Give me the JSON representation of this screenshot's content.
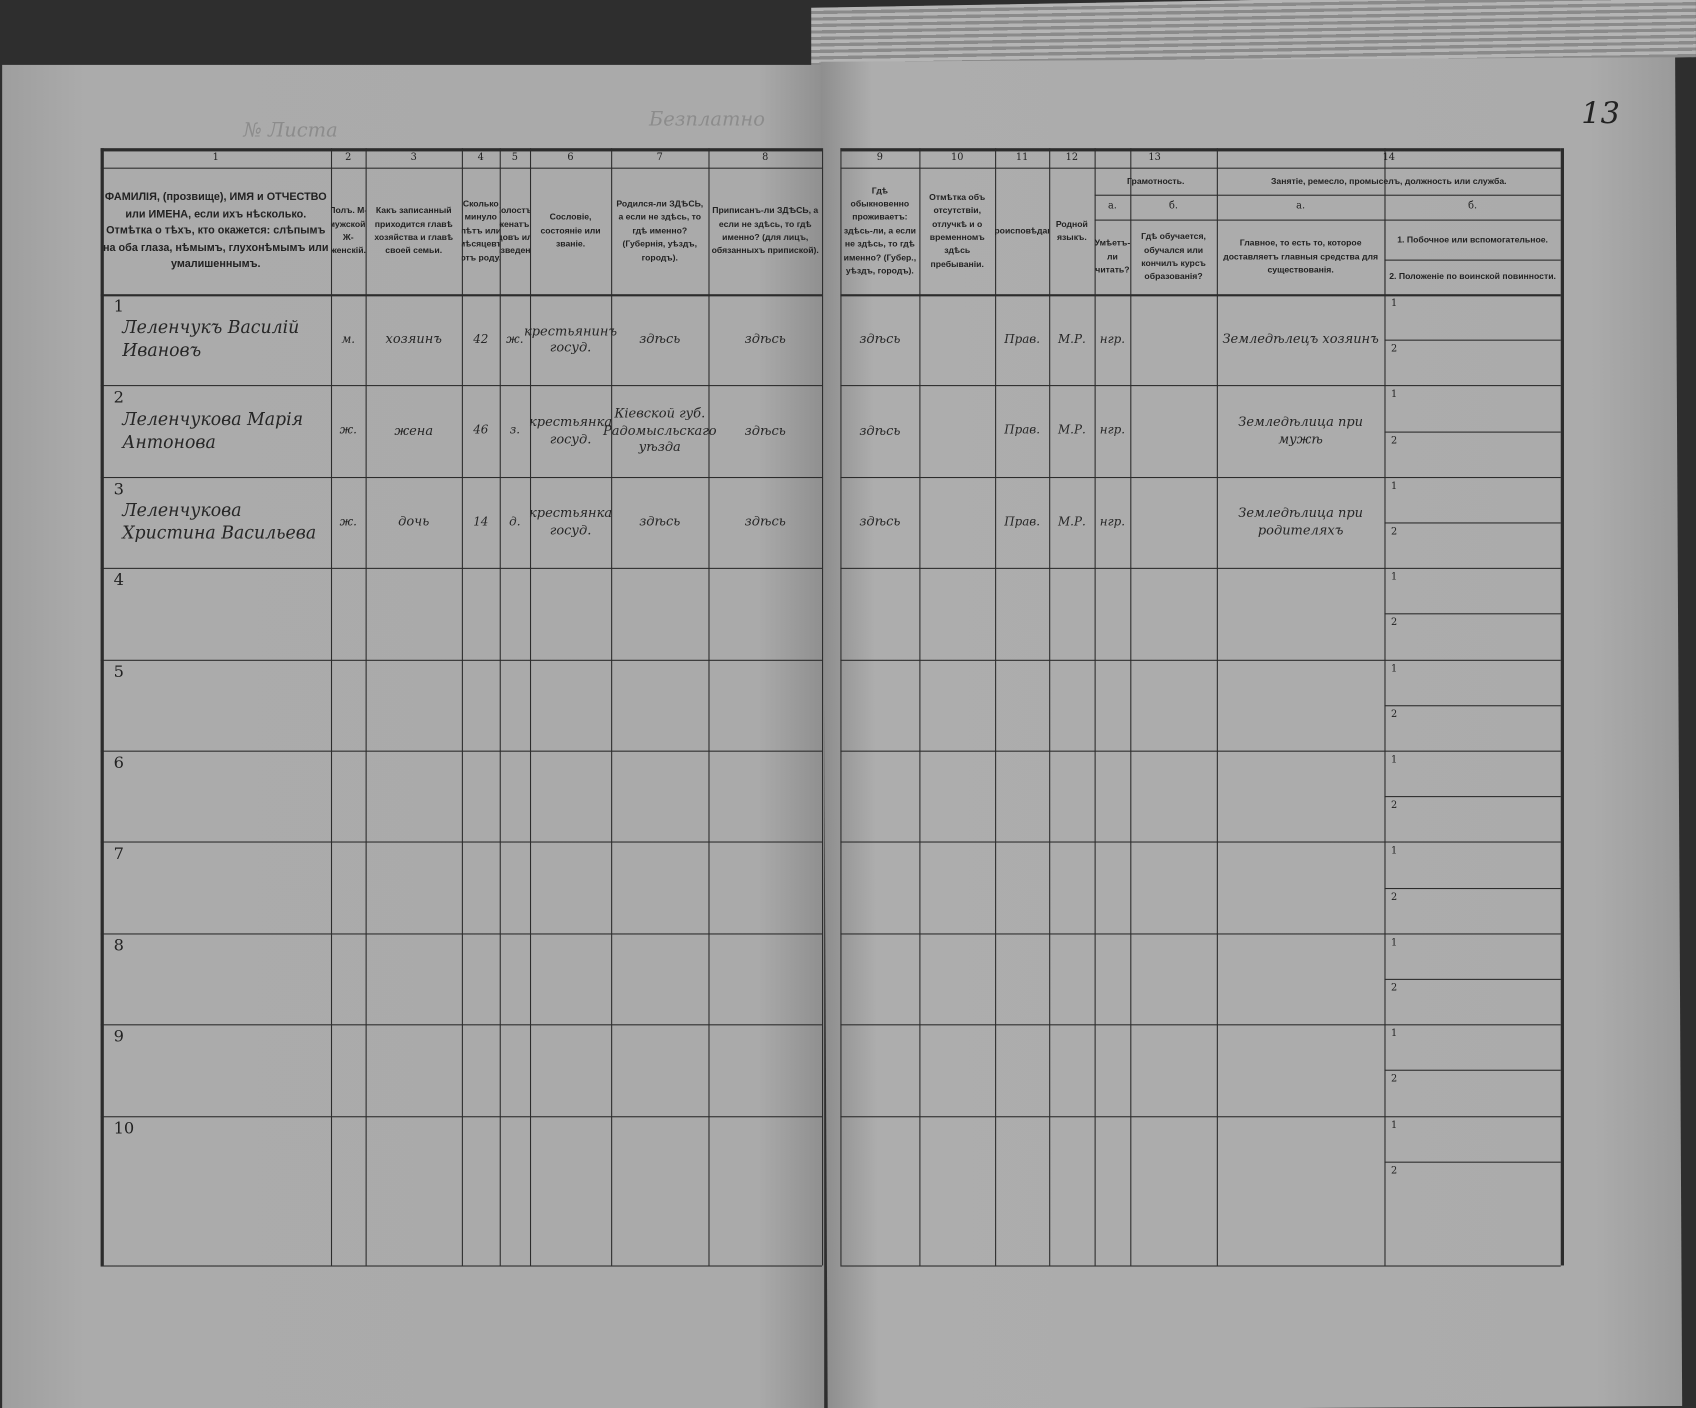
{
  "page_number": "13",
  "top_stamps": {
    "sheet_no": "№ Листа",
    "free": "Безплатно"
  },
  "header_group_13": "Грамотность.",
  "header_group_14": "Занятіе, ремесло, промыселъ, должность или служба.",
  "columns": [
    {
      "num": "1",
      "label": "ФАМИЛІЯ, (прозвище), ИМЯ и ОТЧЕСТВО или ИМЕНА, если ихъ нѣсколько. Отмѣтка о тѣхъ, кто окажется: слѣпымъ на оба глаза, нѣмымъ, глухонѣмымъ или умалишеннымъ."
    },
    {
      "num": "2",
      "label": "Полъ. М-мужской. Ж-женскій."
    },
    {
      "num": "3",
      "label": "Какъ записанный приходится главѣ хозяйства и главѣ своей семьи."
    },
    {
      "num": "4",
      "label": "Сколько минуло лѣтъ или мѣсяцевъ отъ роду."
    },
    {
      "num": "5",
      "label": "Холостъ, женатъ, вдовъ или разведенъ."
    },
    {
      "num": "6",
      "label": "Сословіе, состояніе или званіе."
    },
    {
      "num": "7",
      "label": "Родился-ли ЗДѢСЬ, а если не здѣсь, то гдѣ именно? (Губернія, уѣздъ, городъ)."
    },
    {
      "num": "8",
      "label": "Приписанъ-ли ЗДѢСЬ, а если не здѣсь, то гдѣ именно? (для лицъ, обязанныхъ припиской)."
    },
    {
      "num": "9",
      "label": "Гдѣ обыкновенно проживаетъ: здѣсь-ли, а если не здѣсь, то гдѣ именно? (Губер., уѣздъ, городъ)."
    },
    {
      "num": "10",
      "label": "Отмѣтка объ отсутствіи, отлучкѣ и о временномъ здѣсь пребываніи."
    },
    {
      "num": "11",
      "label": "Вѣроисповѣданіе."
    },
    {
      "num": "12",
      "label": "Родной языкъ."
    },
    {
      "num": "а.",
      "label": "Умѣетъ-ли читать?"
    },
    {
      "num": "б.",
      "label": "Гдѣ обучается, обучался или кончилъ курсъ образованія?"
    },
    {
      "num": "а.",
      "label": "Главное, то есть то, которое доставляетъ главныя средства для существованія."
    },
    {
      "num": "б.",
      "label": ""
    }
  ],
  "group_nums": {
    "g13": "13",
    "g14": "14"
  },
  "col14b": {
    "line1": "1. Побочное или вспомогательное.",
    "line2": "2. Положеніе по воинской повинности."
  },
  "rows": [
    {
      "n": "1",
      "name": "Леленчукъ Василій Ивановъ",
      "sex": "м.",
      "relation": "хозяинъ",
      "age": "42",
      "marital": "ж.",
      "estate": "крестьянинъ госуд.",
      "born": "здѣсь",
      "registered": "здѣсь",
      "resides": "здѣсь",
      "absence": "",
      "religion": "Прав.",
      "language": "М.Р.",
      "reads": "нгр.",
      "schooling": "",
      "occupation": "Земледѣлецъ хозяинъ"
    },
    {
      "n": "2",
      "name": "Леленчукова Марія Антонова",
      "sex": "ж.",
      "relation": "жена",
      "age": "46",
      "marital": "з.",
      "estate": "крестьянка госуд.",
      "born": "Кіевской губ. Радомысльскаго уѣзда",
      "registered": "здѣсь",
      "resides": "здѣсь",
      "absence": "",
      "religion": "Прав.",
      "language": "М.Р.",
      "reads": "нгр.",
      "schooling": "",
      "occupation": "Земледѣлица при мужѣ"
    },
    {
      "n": "3",
      "name": "Леленчукова Христина Васильева",
      "sex": "ж.",
      "relation": "дочь",
      "age": "14",
      "marital": "д.",
      "estate": "крестьянка госуд.",
      "born": "здѣсь",
      "registered": "здѣсь",
      "resides": "здѣсь",
      "absence": "",
      "religion": "Прав.",
      "language": "М.Р.",
      "reads": "нгр.",
      "schooling": "",
      "occupation": "Земледѣлица при родителяхъ"
    },
    {
      "n": "4"
    },
    {
      "n": "5"
    },
    {
      "n": "6"
    },
    {
      "n": "7"
    },
    {
      "n": "8"
    },
    {
      "n": "9"
    },
    {
      "n": "10"
    }
  ],
  "sub_labels": {
    "one": "1",
    "two": "2"
  }
}
